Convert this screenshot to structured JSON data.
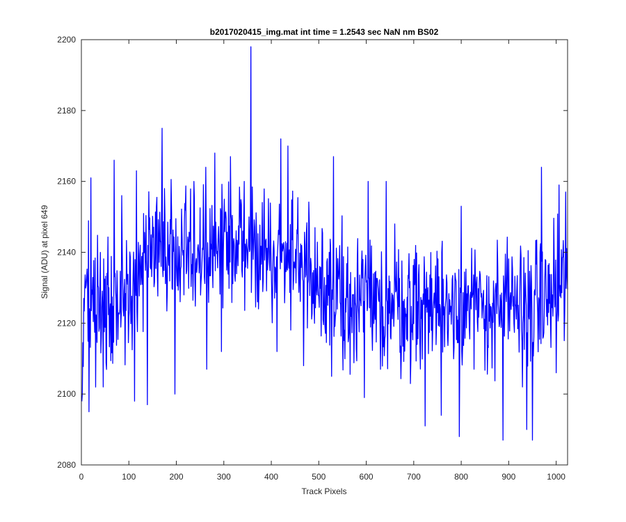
{
  "chart_data": {
    "type": "line",
    "title": "b2017020415_img.mat int time = 1.2543 sec  NaN nm BS02",
    "xlabel": "Track Pixels",
    "ylabel": "Signal (ADU) at pixel 649",
    "xlim": [
      0,
      1024
    ],
    "ylim": [
      2080,
      2200
    ],
    "xticks": [
      0,
      100,
      200,
      300,
      400,
      500,
      600,
      700,
      800,
      900,
      1000
    ],
    "yticks": [
      2080,
      2100,
      2120,
      2140,
      2160,
      2180,
      2200
    ],
    "grid": false,
    "line_color": "#0000ff",
    "anchors": [
      [
        1,
        2110
      ],
      [
        6,
        2135
      ],
      [
        10,
        2124
      ],
      [
        15,
        2128
      ],
      [
        20,
        2122
      ],
      [
        30,
        2127
      ],
      [
        40,
        2125
      ],
      [
        55,
        2126
      ],
      [
        70,
        2128
      ],
      [
        90,
        2131
      ],
      [
        110,
        2134
      ],
      [
        130,
        2136
      ],
      [
        150,
        2138
      ],
      [
        170,
        2139
      ],
      [
        200,
        2139
      ],
      [
        230,
        2140
      ],
      [
        260,
        2140
      ],
      [
        300,
        2141
      ],
      [
        340,
        2141
      ],
      [
        380,
        2141
      ],
      [
        420,
        2140
      ],
      [
        460,
        2137
      ],
      [
        500,
        2133
      ],
      [
        540,
        2129
      ],
      [
        580,
        2126
      ],
      [
        620,
        2124
      ],
      [
        660,
        2124
      ],
      [
        700,
        2125
      ],
      [
        740,
        2126
      ],
      [
        780,
        2126
      ],
      [
        820,
        2125
      ],
      [
        860,
        2124
      ],
      [
        900,
        2124
      ],
      [
        940,
        2125
      ],
      [
        980,
        2127
      ],
      [
        1010,
        2130
      ],
      [
        1024,
        2132
      ]
    ],
    "spikes": [
      [
        2,
        2100
      ],
      [
        16,
        2095
      ],
      [
        20,
        2161
      ],
      [
        46,
        2102
      ],
      [
        69,
        2166
      ],
      [
        85,
        2156
      ],
      [
        112,
        2098
      ],
      [
        116,
        2163
      ],
      [
        139,
        2097
      ],
      [
        170,
        2175
      ],
      [
        175,
        2158
      ],
      [
        197,
        2100
      ],
      [
        237,
        2160
      ],
      [
        262,
        2164
      ],
      [
        264,
        2107
      ],
      [
        281,
        2168
      ],
      [
        295,
        2112
      ],
      [
        314,
        2167
      ],
      [
        343,
        2160
      ],
      [
        357,
        2198
      ],
      [
        412,
        2112
      ],
      [
        420,
        2172
      ],
      [
        435,
        2170
      ],
      [
        468,
        2108
      ],
      [
        502,
        2136
      ],
      [
        527,
        2105
      ],
      [
        531,
        2167
      ],
      [
        596,
        2099
      ],
      [
        604,
        2160
      ],
      [
        642,
        2160
      ],
      [
        660,
        2148
      ],
      [
        724,
        2091
      ],
      [
        758,
        2094
      ],
      [
        796,
        2088
      ],
      [
        800,
        2153
      ],
      [
        827,
        2107
      ],
      [
        888,
        2087
      ],
      [
        901,
        2124
      ],
      [
        929,
        2102
      ],
      [
        938,
        2090
      ],
      [
        950,
        2087
      ],
      [
        969,
        2164
      ],
      [
        992,
        2128
      ],
      [
        1000,
        2106
      ],
      [
        1006,
        2159
      ],
      [
        1020,
        2157
      ]
    ],
    "n_points": 1024,
    "noise_amplitude": 14
  }
}
